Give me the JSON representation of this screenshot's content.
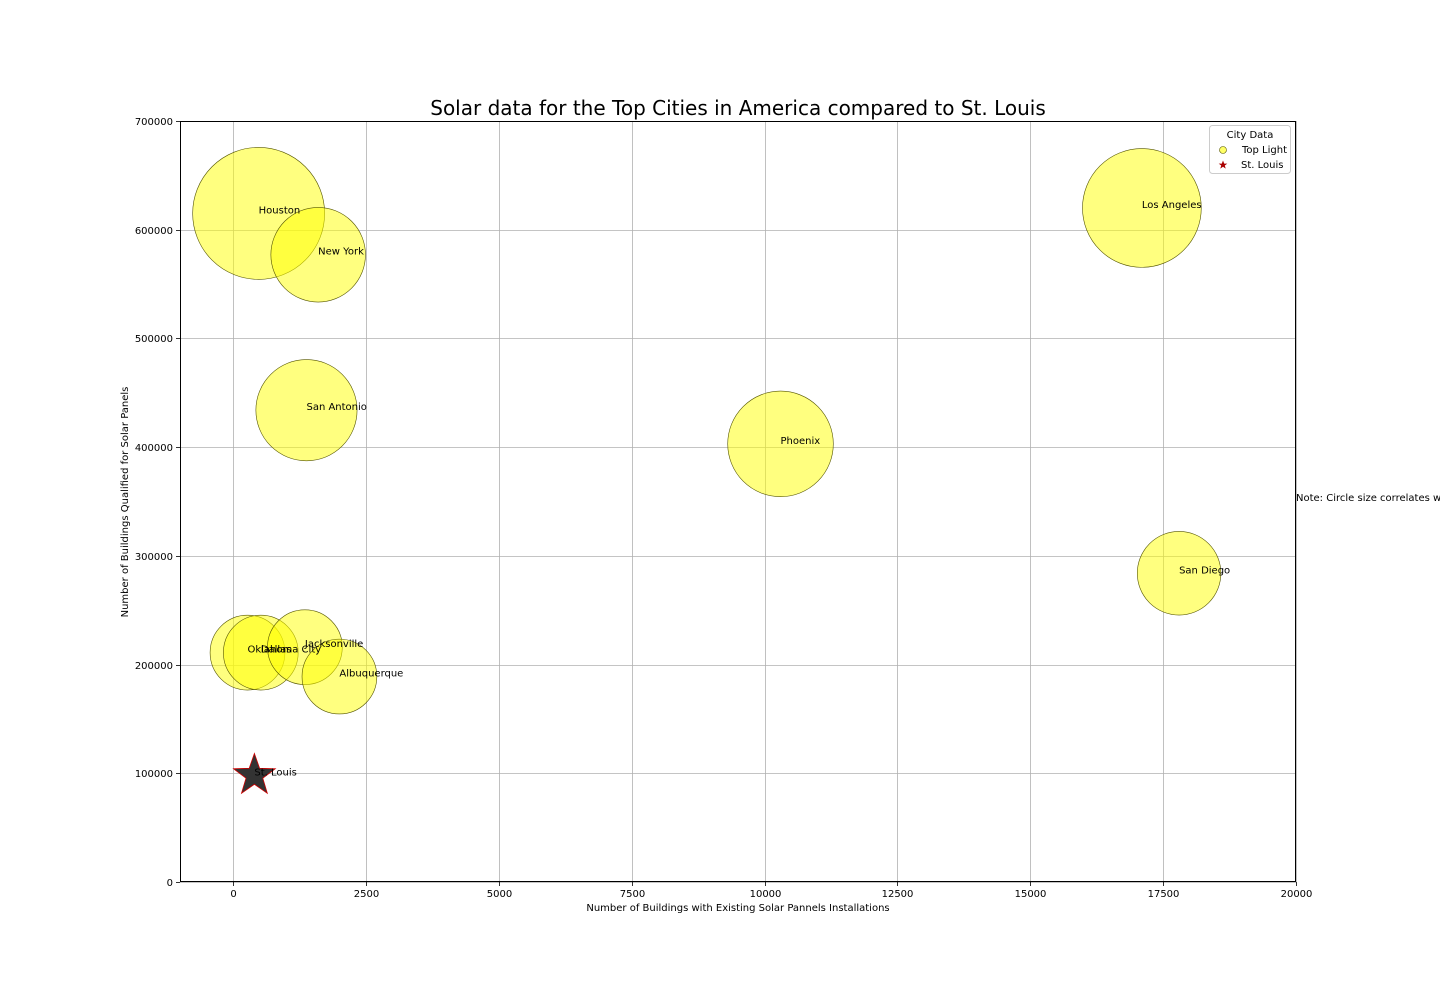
{
  "chart_data": {
    "type": "scatter",
    "title": "Solar data for the Top Cities in America compared to St. Louis",
    "xlabel": "Number of Buildings with Existing Solar Pannels Installations",
    "ylabel": "Number of Buildings Qualified for Solar Panels",
    "xlim": [
      -1000,
      20000
    ],
    "ylim": [
      0,
      700000
    ],
    "xticks": [
      0,
      2500,
      5000,
      7500,
      10000,
      12500,
      15000,
      17500,
      20000
    ],
    "yticks": [
      0,
      100000,
      200000,
      300000,
      400000,
      500000,
      600000,
      700000
    ],
    "grid": true,
    "legend": {
      "title": "City Data",
      "placement": "top-right",
      "entries": [
        "Top Light",
        "St. Louis"
      ]
    },
    "note": "Note: Circle size correlates w",
    "colors": {
      "top_light_fill": "#ffff00",
      "top_light_edge": "#555500",
      "st_louis_fill": "#333333",
      "st_louis_edge": "#cc0000"
    },
    "series": [
      {
        "name": "Top Light",
        "points": [
          {
            "label": "Houston",
            "x": 480,
            "y": 615000,
            "size": 3.0
          },
          {
            "label": "New York",
            "x": 1600,
            "y": 577000,
            "size": 2.15
          },
          {
            "label": "San Antonio",
            "x": 1380,
            "y": 434000,
            "size": 2.3
          },
          {
            "label": "Phoenix",
            "x": 10300,
            "y": 403000,
            "size": 2.4
          },
          {
            "label": "Los Angeles",
            "x": 17100,
            "y": 620000,
            "size": 2.7
          },
          {
            "label": "San Diego",
            "x": 17800,
            "y": 284000,
            "size": 1.9
          },
          {
            "label": "Oklahoma City",
            "x": 270,
            "y": 211000,
            "size": 1.7
          },
          {
            "label": "Dallas",
            "x": 520,
            "y": 211000,
            "size": 1.7
          },
          {
            "label": "Jacksonville",
            "x": 1350,
            "y": 216000,
            "size": 1.7
          },
          {
            "label": "Albuquerque",
            "x": 2000,
            "y": 189000,
            "size": 1.7
          }
        ]
      },
      {
        "name": "St. Louis",
        "points": [
          {
            "label": "St. Louis",
            "x": 400,
            "y": 98000,
            "size": 1.0
          }
        ]
      }
    ]
  }
}
